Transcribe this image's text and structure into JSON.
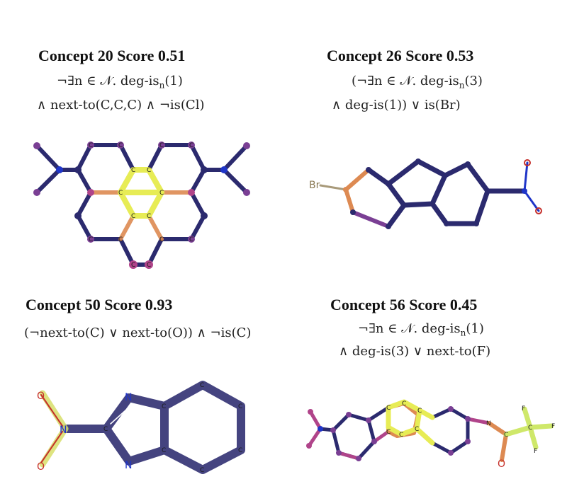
{
  "panels": [
    {
      "title": "Concept 20  Score 0.51",
      "formula_line1_pre": "¬∃n ∈ 𝒩. deg-is",
      "formula_line1_sub": "n",
      "formula_line1_post": "(1)",
      "formula_line2": "∧ next-to(C,C,C) ∧ ¬is(Cl)"
    },
    {
      "title": "Concept 26  Score 0.53",
      "formula_line1_pre": "(¬∃n ∈ 𝒩. deg-is",
      "formula_line1_sub": "n",
      "formula_line1_post": "(3)",
      "formula_line2": "∧ deg-is(1)) ∨ is(Br)",
      "atom_br": "Br"
    },
    {
      "title": "Concept 50 Score 0.93",
      "formula_line1": "(¬next-to(C) ∨ next-to(O)) ∧ ¬is(C)",
      "atom_o": "O",
      "atom_n": "N"
    },
    {
      "title": "Concept 56 Score 0.45",
      "formula_line1_pre": "¬∃n ∈ 𝒩. deg-is",
      "formula_line1_sub": "n",
      "formula_line1_post": "(1)",
      "formula_line2": "∧ deg-is(3) ∨ next-to(F)",
      "atom_n": "N",
      "atom_o": "O",
      "atom_f": "F"
    }
  ],
  "atom_labels": {
    "c": "C",
    "n": "N",
    "o": "O"
  },
  "colors": {
    "dark": "#2b2a6e",
    "purple": "#7a3f94",
    "magenta": "#b0448a",
    "orange": "#dd8a52",
    "yellow": "#e7ec55",
    "green": "#cfe86a",
    "red": "#c6312c",
    "blue": "#1f35c8"
  }
}
